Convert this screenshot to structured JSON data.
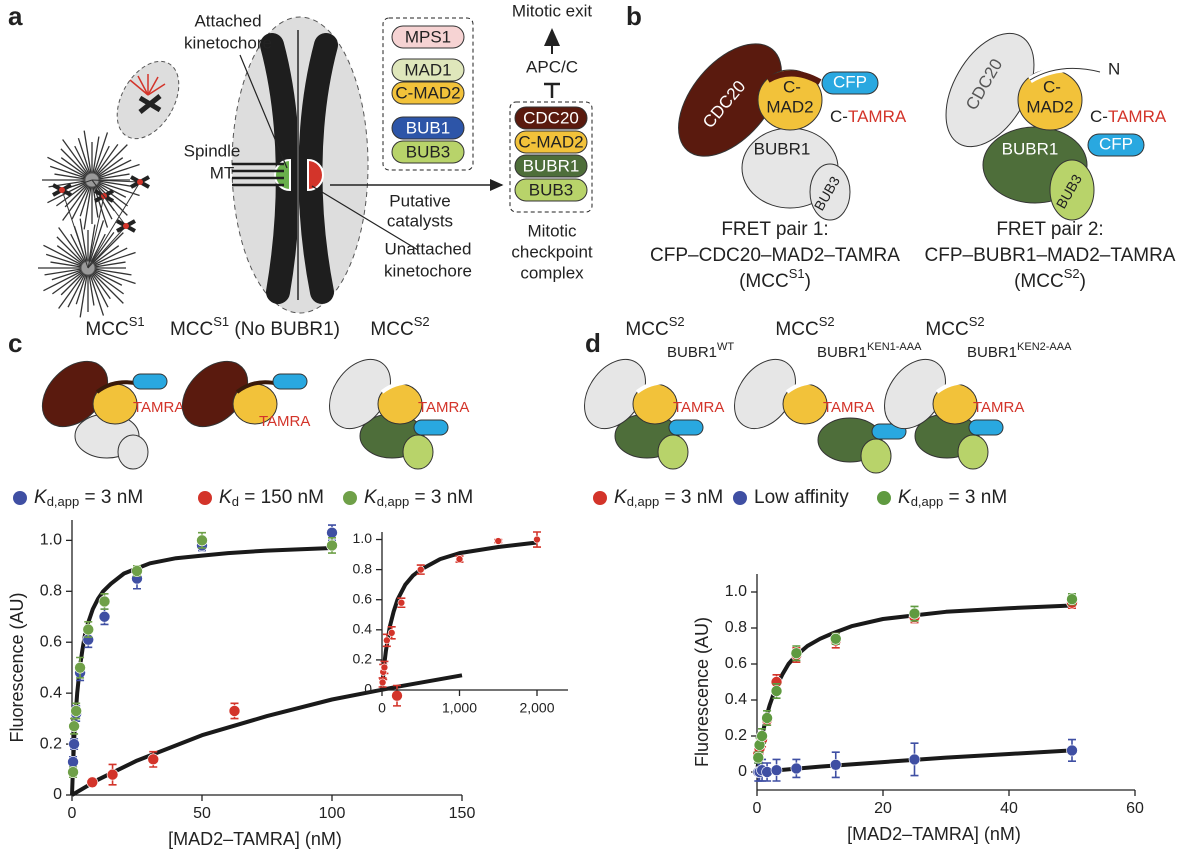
{
  "panels": {
    "a": {
      "label": "a",
      "attached": [
        "Attached",
        "kinetochore"
      ],
      "spindle": [
        "Spindle",
        "MT"
      ],
      "unattached": [
        "Unattached",
        "kinetochore"
      ],
      "catalysts_label": [
        "Putative",
        "catalysts"
      ],
      "catalysts": [
        "MPS1",
        "MAD1",
        "C-MAD2",
        "BUB1",
        "BUB3"
      ],
      "mcc": [
        "CDC20",
        "C-MAD2",
        "BUBR1",
        "BUB3"
      ],
      "mcc_label": [
        "Mitotic",
        "checkpoint",
        "complex"
      ],
      "apc": "APC/C",
      "exit": "Mitotic exit"
    },
    "b": {
      "label": "b",
      "pair1": {
        "cdc20": "CDC20",
        "mad2": [
          "C-",
          "MAD2"
        ],
        "cfp": "CFP",
        "c": "C-",
        "tamra": "TAMRA",
        "bubr1": "BUBR1",
        "bub3": "BUB3",
        "caption": [
          "FRET pair 1:",
          "CFP–CDC20–MAD2–TAMRA"
        ],
        "mcc": {
          "text": "(MCC",
          "sup": "S1",
          "after": ")"
        }
      },
      "pair2": {
        "cdc20": "CDC20",
        "mad2": [
          "C-",
          "MAD2"
        ],
        "n": "N",
        "cfp": "CFP",
        "c": "C-",
        "tamra": "TAMRA",
        "bubr1": "BUBR1",
        "bub3": "BUB3",
        "caption": [
          "FRET pair 2:",
          "CFP–BUBR1–MAD2–TAMRA"
        ],
        "mcc": {
          "text": "(MCC",
          "sup": "S2",
          "after": ")"
        }
      }
    }
  },
  "chart_data": [
    {
      "type": "scatter",
      "panel": "c",
      "xlabel": "[MAD2–TAMRA] (nM)",
      "ylabel": "Fluorescence (AU)",
      "xlim": [
        0,
        150
      ],
      "xticks": [
        0,
        50,
        100,
        150
      ],
      "ylim": [
        0,
        1.08
      ],
      "yticks": [
        0,
        0.2,
        0.4,
        0.6,
        0.8,
        {
          "value": 1,
          "label": "1.0"
        }
      ],
      "series": [
        {
          "title": {
            "text": "MCC",
            "sup": "S1"
          },
          "tag": "TAMRA",
          "label": {
            "k": "K",
            "sub": "d,app",
            "eq": " = ",
            "value": 3,
            "unit": " nM"
          },
          "color": "#3f4fa3",
          "x": [
            0.4,
            0.8,
            1.6,
            3.1,
            6.25,
            12.5,
            25,
            50,
            100
          ],
          "values": [
            0.13,
            0.2,
            0.32,
            0.48,
            0.61,
            0.7,
            0.85,
            0.98,
            1.03
          ],
          "errors": [
            0.02,
            0.02,
            0.03,
            0.03,
            0.03,
            0.03,
            0.04,
            0.02,
            0.03
          ]
        },
        {
          "title": {
            "text": "MCC",
            "sup": "S1",
            "after": " (No BUBR1)"
          },
          "tag": "TAMRA",
          "label": {
            "k": "K",
            "sub": "d",
            "eq": " = ",
            "value": 150,
            "unit": " nM"
          },
          "color": "#d3342a",
          "x": [
            7.8,
            15.6,
            31.25,
            62.5,
            125
          ],
          "values": [
            0.05,
            0.08,
            0.14,
            0.33,
            0.39
          ],
          "errors": [
            0.01,
            0.04,
            0.03,
            0.03,
            0.04
          ]
        },
        {
          "title": {
            "text": "MCC",
            "sup": "S2"
          },
          "tag": "TAMRA",
          "label": {
            "k": "K",
            "sub": "d,app",
            "eq": " = ",
            "value": 3,
            "unit": " nM"
          },
          "color": "#6fa048",
          "x": [
            0.4,
            0.8,
            1.6,
            3.1,
            6.25,
            12.5,
            25,
            50,
            100
          ],
          "values": [
            0.09,
            0.27,
            0.33,
            0.5,
            0.65,
            0.76,
            0.88,
            1.0,
            0.98
          ],
          "errors": [
            0.02,
            0.03,
            0.03,
            0.04,
            0.03,
            0.03,
            0.02,
            0.03,
            0.03
          ]
        }
      ],
      "fits": [
        {
          "x": [
            0,
            0.5,
            1,
            1.5,
            2,
            3,
            4,
            5,
            6,
            8,
            10,
            12,
            15,
            20,
            25,
            30,
            40,
            50,
            60,
            75,
            100
          ],
          "values": [
            0,
            0.14,
            0.25,
            0.33,
            0.4,
            0.5,
            0.57,
            0.63,
            0.67,
            0.73,
            0.77,
            0.8,
            0.83,
            0.87,
            0.89,
            0.91,
            0.93,
            0.94,
            0.95,
            0.96,
            0.97
          ]
        },
        {
          "x": [
            0,
            10,
            25,
            50,
            75,
            100,
            125,
            150
          ],
          "values": [
            0,
            0.06,
            0.135,
            0.235,
            0.31,
            0.375,
            0.425,
            0.47
          ]
        }
      ]
    },
    {
      "type": "scatter",
      "xlim": [
        0,
        2400
      ],
      "xticks": [
        0,
        {
          "value": 1000,
          "label": "1,000"
        },
        {
          "value": 2000,
          "label": "2,000"
        }
      ],
      "ylim": [
        0,
        1.05
      ],
      "yticks": [
        0,
        0.2,
        0.4,
        0.6,
        0.8,
        {
          "value": 1,
          "label": "1.0"
        }
      ],
      "series": [
        {
          "color": "#d3342a",
          "x": [
            7.8,
            15.6,
            31.25,
            62.5,
            125,
            250,
            500,
            1000,
            1500,
            2000
          ],
          "values": [
            0.05,
            0.12,
            0.15,
            0.33,
            0.38,
            0.58,
            0.8,
            0.87,
            0.99,
            1.0
          ],
          "errors": [
            0.03,
            0.05,
            0.04,
            0.04,
            0.04,
            0.03,
            0.03,
            0.02,
            0.01,
            0.05
          ]
        }
      ],
      "fits": [
        {
          "x": [
            0,
            25,
            50,
            100,
            150,
            200,
            300,
            400,
            500,
            750,
            1000,
            1500,
            2000
          ],
          "values": [
            0,
            0.15,
            0.26,
            0.42,
            0.52,
            0.6,
            0.7,
            0.76,
            0.8,
            0.87,
            0.91,
            0.95,
            0.98
          ]
        }
      ]
    },
    {
      "type": "scatter",
      "panel": "d",
      "xlabel": "[MAD2–TAMRA] (nM)",
      "ylabel": "Fluorescence (AU)",
      "xlim": [
        0,
        60
      ],
      "xticks": [
        0,
        20,
        40,
        60
      ],
      "ylim": [
        -0.1,
        1.1
      ],
      "yticks": [
        0,
        0.2,
        0.4,
        0.6,
        0.8,
        {
          "value": 1,
          "label": "1.0"
        }
      ],
      "series": [
        {
          "title": {
            "text": "MCC",
            "sup": "S2"
          },
          "subtitle": {
            "text": "BUBR1",
            "sup": "WT"
          },
          "tag": "TAMRA",
          "label": {
            "k": "K",
            "sub": "d,app",
            "eq": " = ",
            "value": 3,
            "unit": " nM"
          },
          "color": "#d3342a",
          "x": [
            0.2,
            0.4,
            0.8,
            1.6,
            3.1,
            6.25,
            12.5,
            25,
            50
          ],
          "values": [
            0.1,
            0.13,
            0.18,
            0.29,
            0.5,
            0.65,
            0.73,
            0.86,
            0.94
          ],
          "errors": [
            0.04,
            0.04,
            0.04,
            0.03,
            0.04,
            0.04,
            0.04,
            0.03,
            0.03
          ]
        },
        {
          "title": {
            "text": "MCC",
            "sup": "S2"
          },
          "subtitle": {
            "text": "BUBR1",
            "sup": "KEN1-AAA"
          },
          "tag": "TAMRA",
          "label": {
            "text": "Low affinity"
          },
          "color": "#3f4fa3",
          "x": [
            0.2,
            0.4,
            0.8,
            1.6,
            3.1,
            6.25,
            12.5,
            25,
            50
          ],
          "values": [
            0,
            0,
            0.01,
            0,
            0.01,
            0.02,
            0.04,
            0.07,
            0.12
          ],
          "errors": [
            0.05,
            0.05,
            0.06,
            0.05,
            0.06,
            0.05,
            0.07,
            0.09,
            0.06
          ]
        },
        {
          "title": {
            "text": "MCC",
            "sup": "S2"
          },
          "subtitle": {
            "text": "BUBR1",
            "sup": "KEN2-AAA"
          },
          "tag": "TAMRA",
          "label": {
            "k": "K",
            "sub": "d,app",
            "eq": " = ",
            "value": 3,
            "unit": " nM"
          },
          "color": "#5f9a40",
          "x": [
            0.2,
            0.4,
            0.8,
            1.6,
            3.1,
            6.25,
            12.5,
            25,
            50
          ],
          "values": [
            0.08,
            0.15,
            0.2,
            0.3,
            0.45,
            0.66,
            0.74,
            0.88,
            0.96
          ],
          "errors": [
            0.03,
            0.04,
            0.04,
            0.04,
            0.04,
            0.04,
            0.03,
            0.04,
            0.03
          ]
        }
      ],
      "fits": [
        {
          "x": [
            0,
            0.5,
            1,
            1.5,
            2,
            3,
            4,
            5,
            6,
            8,
            10,
            12,
            15,
            20,
            25,
            30,
            40,
            50
          ],
          "values": [
            0,
            0.13,
            0.23,
            0.31,
            0.37,
            0.47,
            0.54,
            0.6,
            0.64,
            0.7,
            0.74,
            0.77,
            0.81,
            0.85,
            0.87,
            0.89,
            0.91,
            0.925
          ]
        },
        {
          "x": [
            0,
            10,
            20,
            30,
            40,
            50
          ],
          "values": [
            0,
            0.03,
            0.055,
            0.08,
            0.1,
            0.12
          ]
        }
      ]
    }
  ]
}
